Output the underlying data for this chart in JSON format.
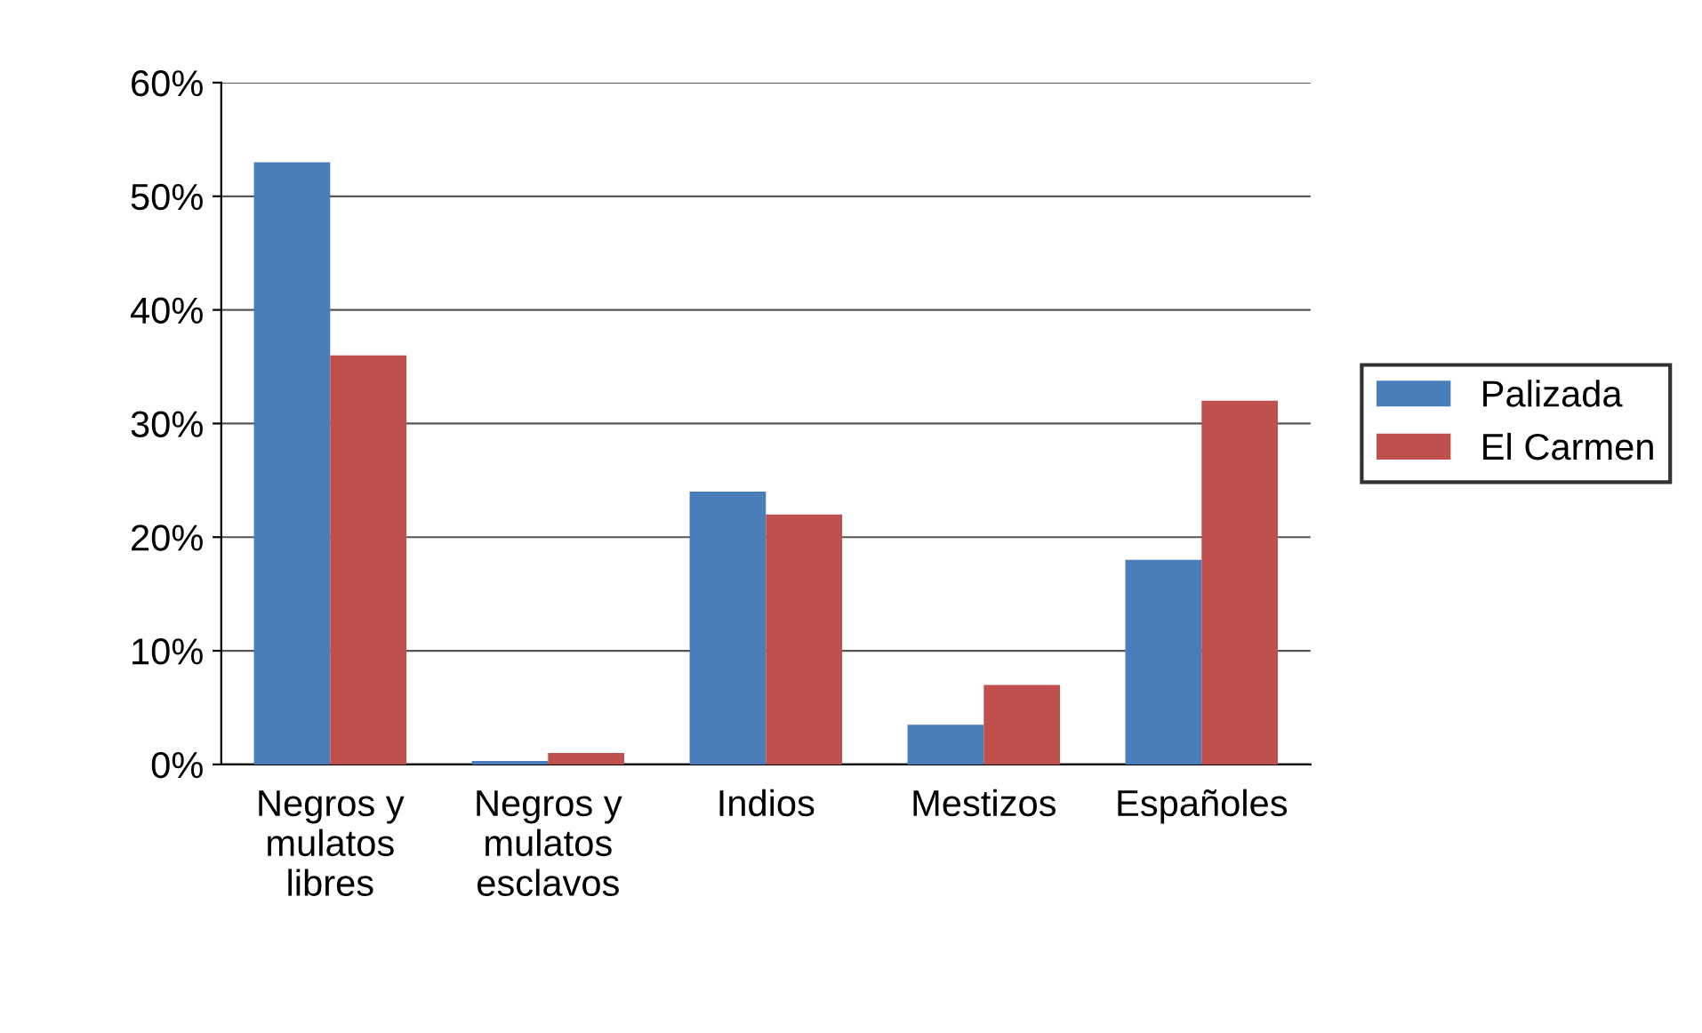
{
  "chart_data": {
    "type": "bar",
    "categories": [
      "Negros y\nmulatos\nlibres",
      "Negros y\nmulatos\nesclavos",
      "Indios",
      "Mestizos",
      "Españoles"
    ],
    "series": [
      {
        "name": "Palizada",
        "color": "#4a7ebb",
        "values": [
          53,
          0.3,
          24,
          3.5,
          18
        ]
      },
      {
        "name": "El Carmen",
        "color": "#c0504d",
        "values": [
          36,
          1,
          22,
          7,
          32
        ]
      }
    ],
    "ylim": [
      0,
      60
    ],
    "yticks": [
      {
        "value": 0,
        "label": "0%"
      },
      {
        "value": 10,
        "label": "10%"
      },
      {
        "value": 20,
        "label": "20%"
      },
      {
        "value": 30,
        "label": "30%"
      },
      {
        "value": 40,
        "label": "40%"
      },
      {
        "value": 50,
        "label": "50%"
      },
      {
        "value": 60,
        "label": "60%"
      }
    ],
    "grid": "y",
    "legend": "right"
  }
}
